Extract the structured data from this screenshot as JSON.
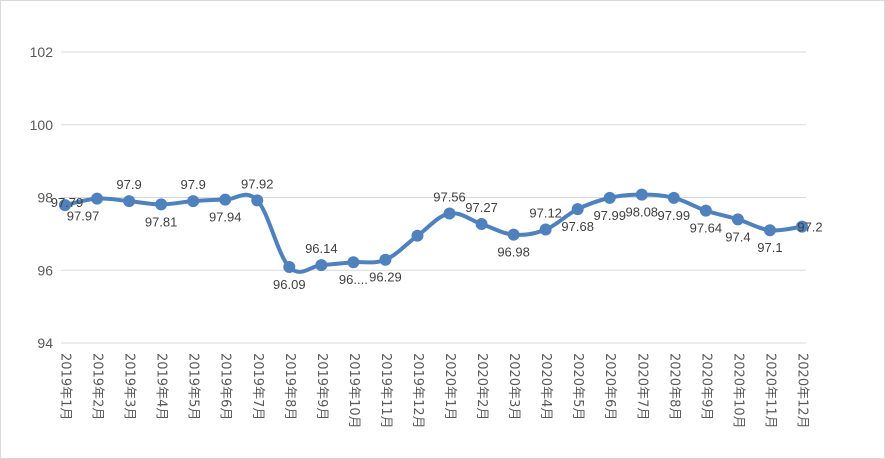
{
  "chart_data": {
    "type": "line",
    "title": "",
    "xlabel": "",
    "ylabel": "",
    "ylim": [
      94,
      102
    ],
    "yticks": [
      "94",
      "96",
      "98",
      "100",
      "102"
    ],
    "grid": "horizontal",
    "legend": "none",
    "colors": {
      "series": "#4f81bd",
      "grid": "#d9d9d9",
      "text": "#595959"
    },
    "categories": [
      "2019年1月",
      "2019年2月",
      "2019年3月",
      "2019年4月",
      "2019年5月",
      "2019年6月",
      "2019年7月",
      "2019年8月",
      "2019年9月",
      "2019年10月",
      "2019年11月",
      "2019年12月",
      "2020年1月",
      "2020年2月",
      "2020年3月",
      "2020年4月",
      "2020年5月",
      "2020年6月",
      "2020年7月",
      "2020年8月",
      "2020年9月",
      "2020年10月",
      "2020年11月",
      "2020年12月"
    ],
    "series": [
      {
        "values": [
          97.79,
          97.97,
          97.9,
          97.81,
          97.9,
          97.94,
          97.92,
          96.09,
          96.14,
          96.22,
          96.29,
          96.95,
          97.56,
          97.27,
          96.98,
          97.12,
          97.68,
          97.99,
          98.08,
          97.99,
          97.64,
          97.4,
          97.1,
          97.2
        ],
        "labels": [
          "97.79",
          "97.97",
          "97.9",
          "97.81",
          "97.9",
          "97.94",
          "97.92",
          "96.09",
          "96.14",
          "96....",
          "96.29",
          "",
          "97.56",
          "97.27",
          "96.98",
          "97.12",
          "97.68",
          "97.99",
          "98.08",
          "97.99",
          "97.64",
          "97.4",
          "97.1",
          "97.2"
        ]
      }
    ]
  }
}
